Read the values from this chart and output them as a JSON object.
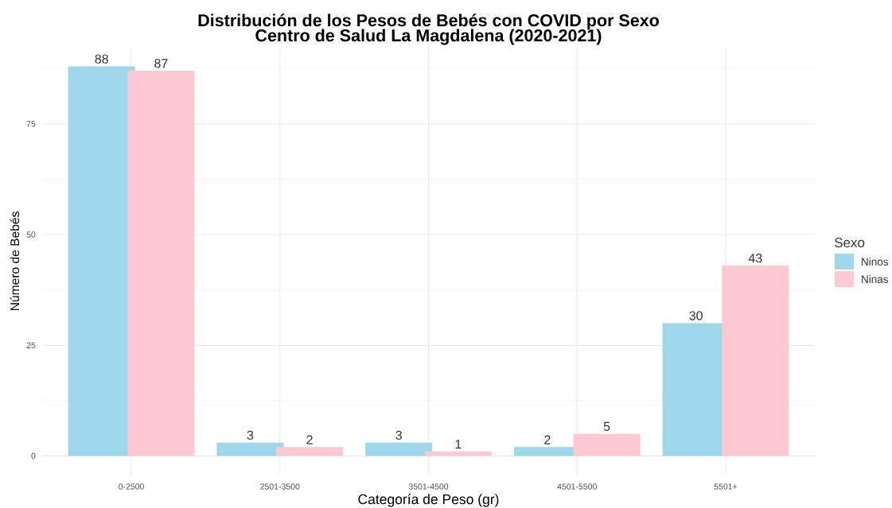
{
  "chart_data": {
    "type": "bar",
    "title": "Distribución de los Pesos de Bebés con COVID por Sexo",
    "subtitle": "Centro de Salud La Magdalena (2020-2021)",
    "xlabel": "Categoría de Peso (gr)",
    "ylabel": "Número de Bebés",
    "legend_title": "Sexo",
    "categories": [
      "0-2500",
      "2501-3500",
      "3501-4500",
      "4501-5500",
      "5501+"
    ],
    "series": [
      {
        "name": "Ninos",
        "color": "#9ed6ec",
        "values": [
          88,
          3,
          3,
          2,
          30
        ]
      },
      {
        "name": "Ninas",
        "color": "#fec9d3",
        "values": [
          87,
          2,
          1,
          5,
          43
        ]
      }
    ],
    "ylim": [
      -4.4,
      92.4
    ],
    "yticks": [
      0,
      {
        "value": 12.5,
        "label": null
      },
      25,
      {
        "value": 37.5,
        "label": null
      },
      50,
      {
        "value": 62.5,
        "label": null
      },
      75,
      {
        "value": 87.5,
        "label": null
      }
    ],
    "grid": true,
    "legend": "right",
    "data_labels": true
  }
}
